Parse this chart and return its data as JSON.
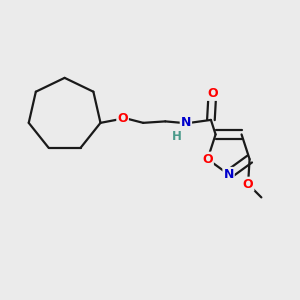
{
  "background_color": "#ebebeb",
  "bond_color": "#1a1a1a",
  "atom_colors": {
    "O": "#ff0000",
    "N": "#0000cc",
    "H": "#4a9a8a",
    "C": "#1a1a1a"
  },
  "figsize": [
    3.0,
    3.0
  ],
  "dpi": 100,
  "bond_lw": 1.6,
  "font_size": 9
}
